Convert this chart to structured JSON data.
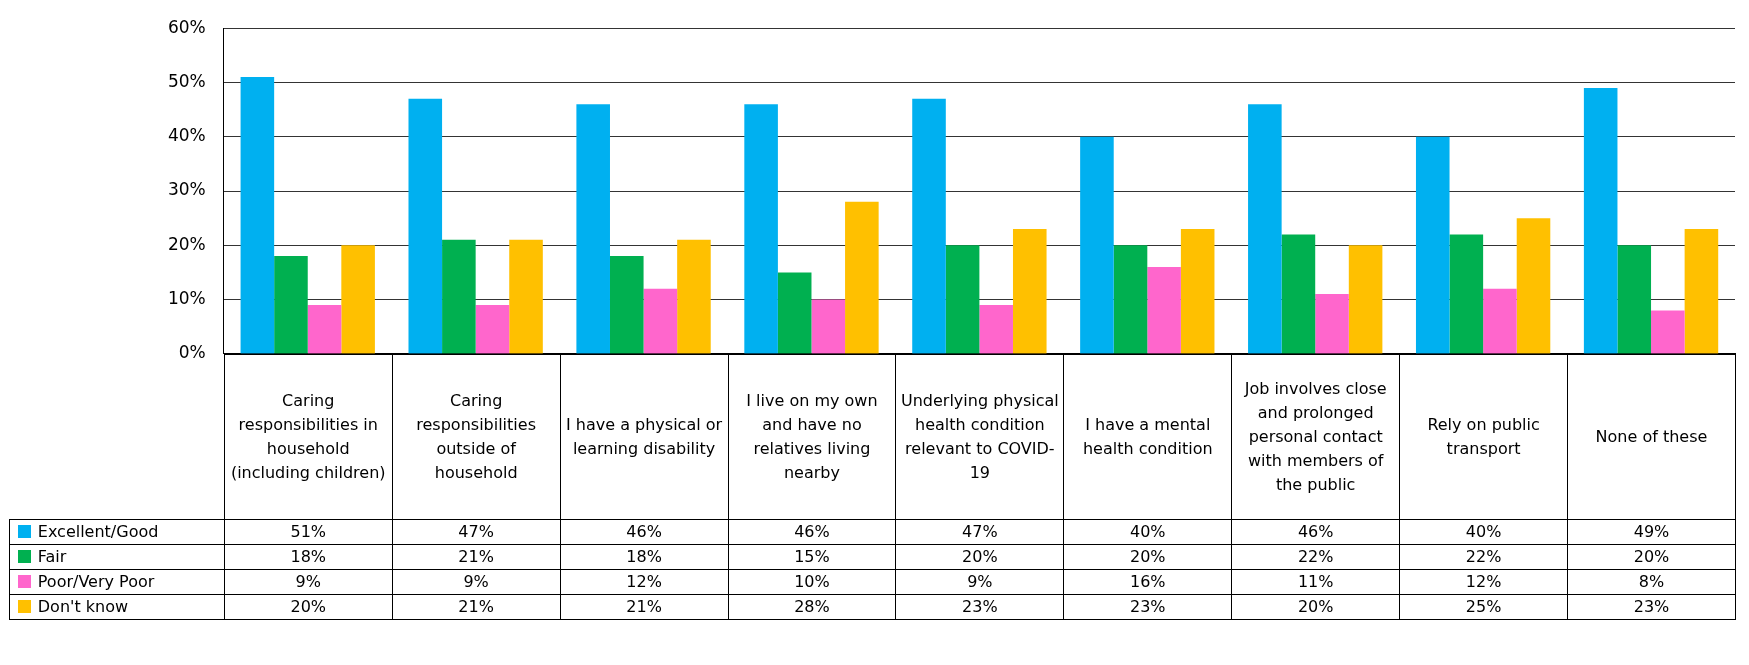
{
  "chart_data": {
    "type": "bar",
    "categories": [
      "Caring responsibilities in household (including children)",
      "Caring responsibilities outside of household",
      "I have a physical or learning disability",
      "I live on my own and have no relatives living nearby",
      "Underlying physical health condition relevant to COVID-19",
      "I have a mental health condition",
      "Job involves close and prolonged personal contact with members of the public",
      "Rely on public transport",
      "None of these"
    ],
    "series": [
      {
        "name": "Excellent/Good",
        "color": "#00b0f0",
        "values": [
          51,
          47,
          46,
          46,
          47,
          40,
          46,
          40,
          49
        ],
        "value_labels": [
          "51%",
          "47%",
          "46%",
          "46%",
          "47%",
          "40%",
          "46%",
          "40%",
          "49%"
        ]
      },
      {
        "name": "Fair",
        "color": "#00b050",
        "values": [
          18,
          21,
          18,
          15,
          20,
          20,
          22,
          22,
          20
        ],
        "value_labels": [
          "18%",
          "21%",
          "18%",
          "15%",
          "20%",
          "20%",
          "22%",
          "22%",
          "20%"
        ]
      },
      {
        "name": "Poor/Very Poor",
        "color": "#ff66cc",
        "values": [
          9,
          9,
          12,
          10,
          9,
          16,
          11,
          12,
          8
        ],
        "value_labels": [
          "9%",
          "9%",
          "12%",
          "10%",
          "9%",
          "16%",
          "11%",
          "12%",
          "8%"
        ]
      },
      {
        "name": "Don't know",
        "color": "#ffc000",
        "values": [
          20,
          21,
          21,
          28,
          23,
          23,
          20,
          25,
          23
        ],
        "value_labels": [
          "20%",
          "21%",
          "21%",
          "28%",
          "23%",
          "23%",
          "20%",
          "25%",
          "23%"
        ]
      }
    ],
    "ylim": [
      0,
      60
    ],
    "yticks": [
      {
        "value": 0,
        "label": "0%"
      },
      {
        "value": 10,
        "label": "10%"
      },
      {
        "value": 20,
        "label": "20%"
      },
      {
        "value": 30,
        "label": "30%"
      },
      {
        "value": 40,
        "label": "40%"
      },
      {
        "value": 50,
        "label": "50%"
      },
      {
        "value": 60,
        "label": "60%"
      }
    ],
    "grid": "y",
    "legend": "bottom left"
  }
}
